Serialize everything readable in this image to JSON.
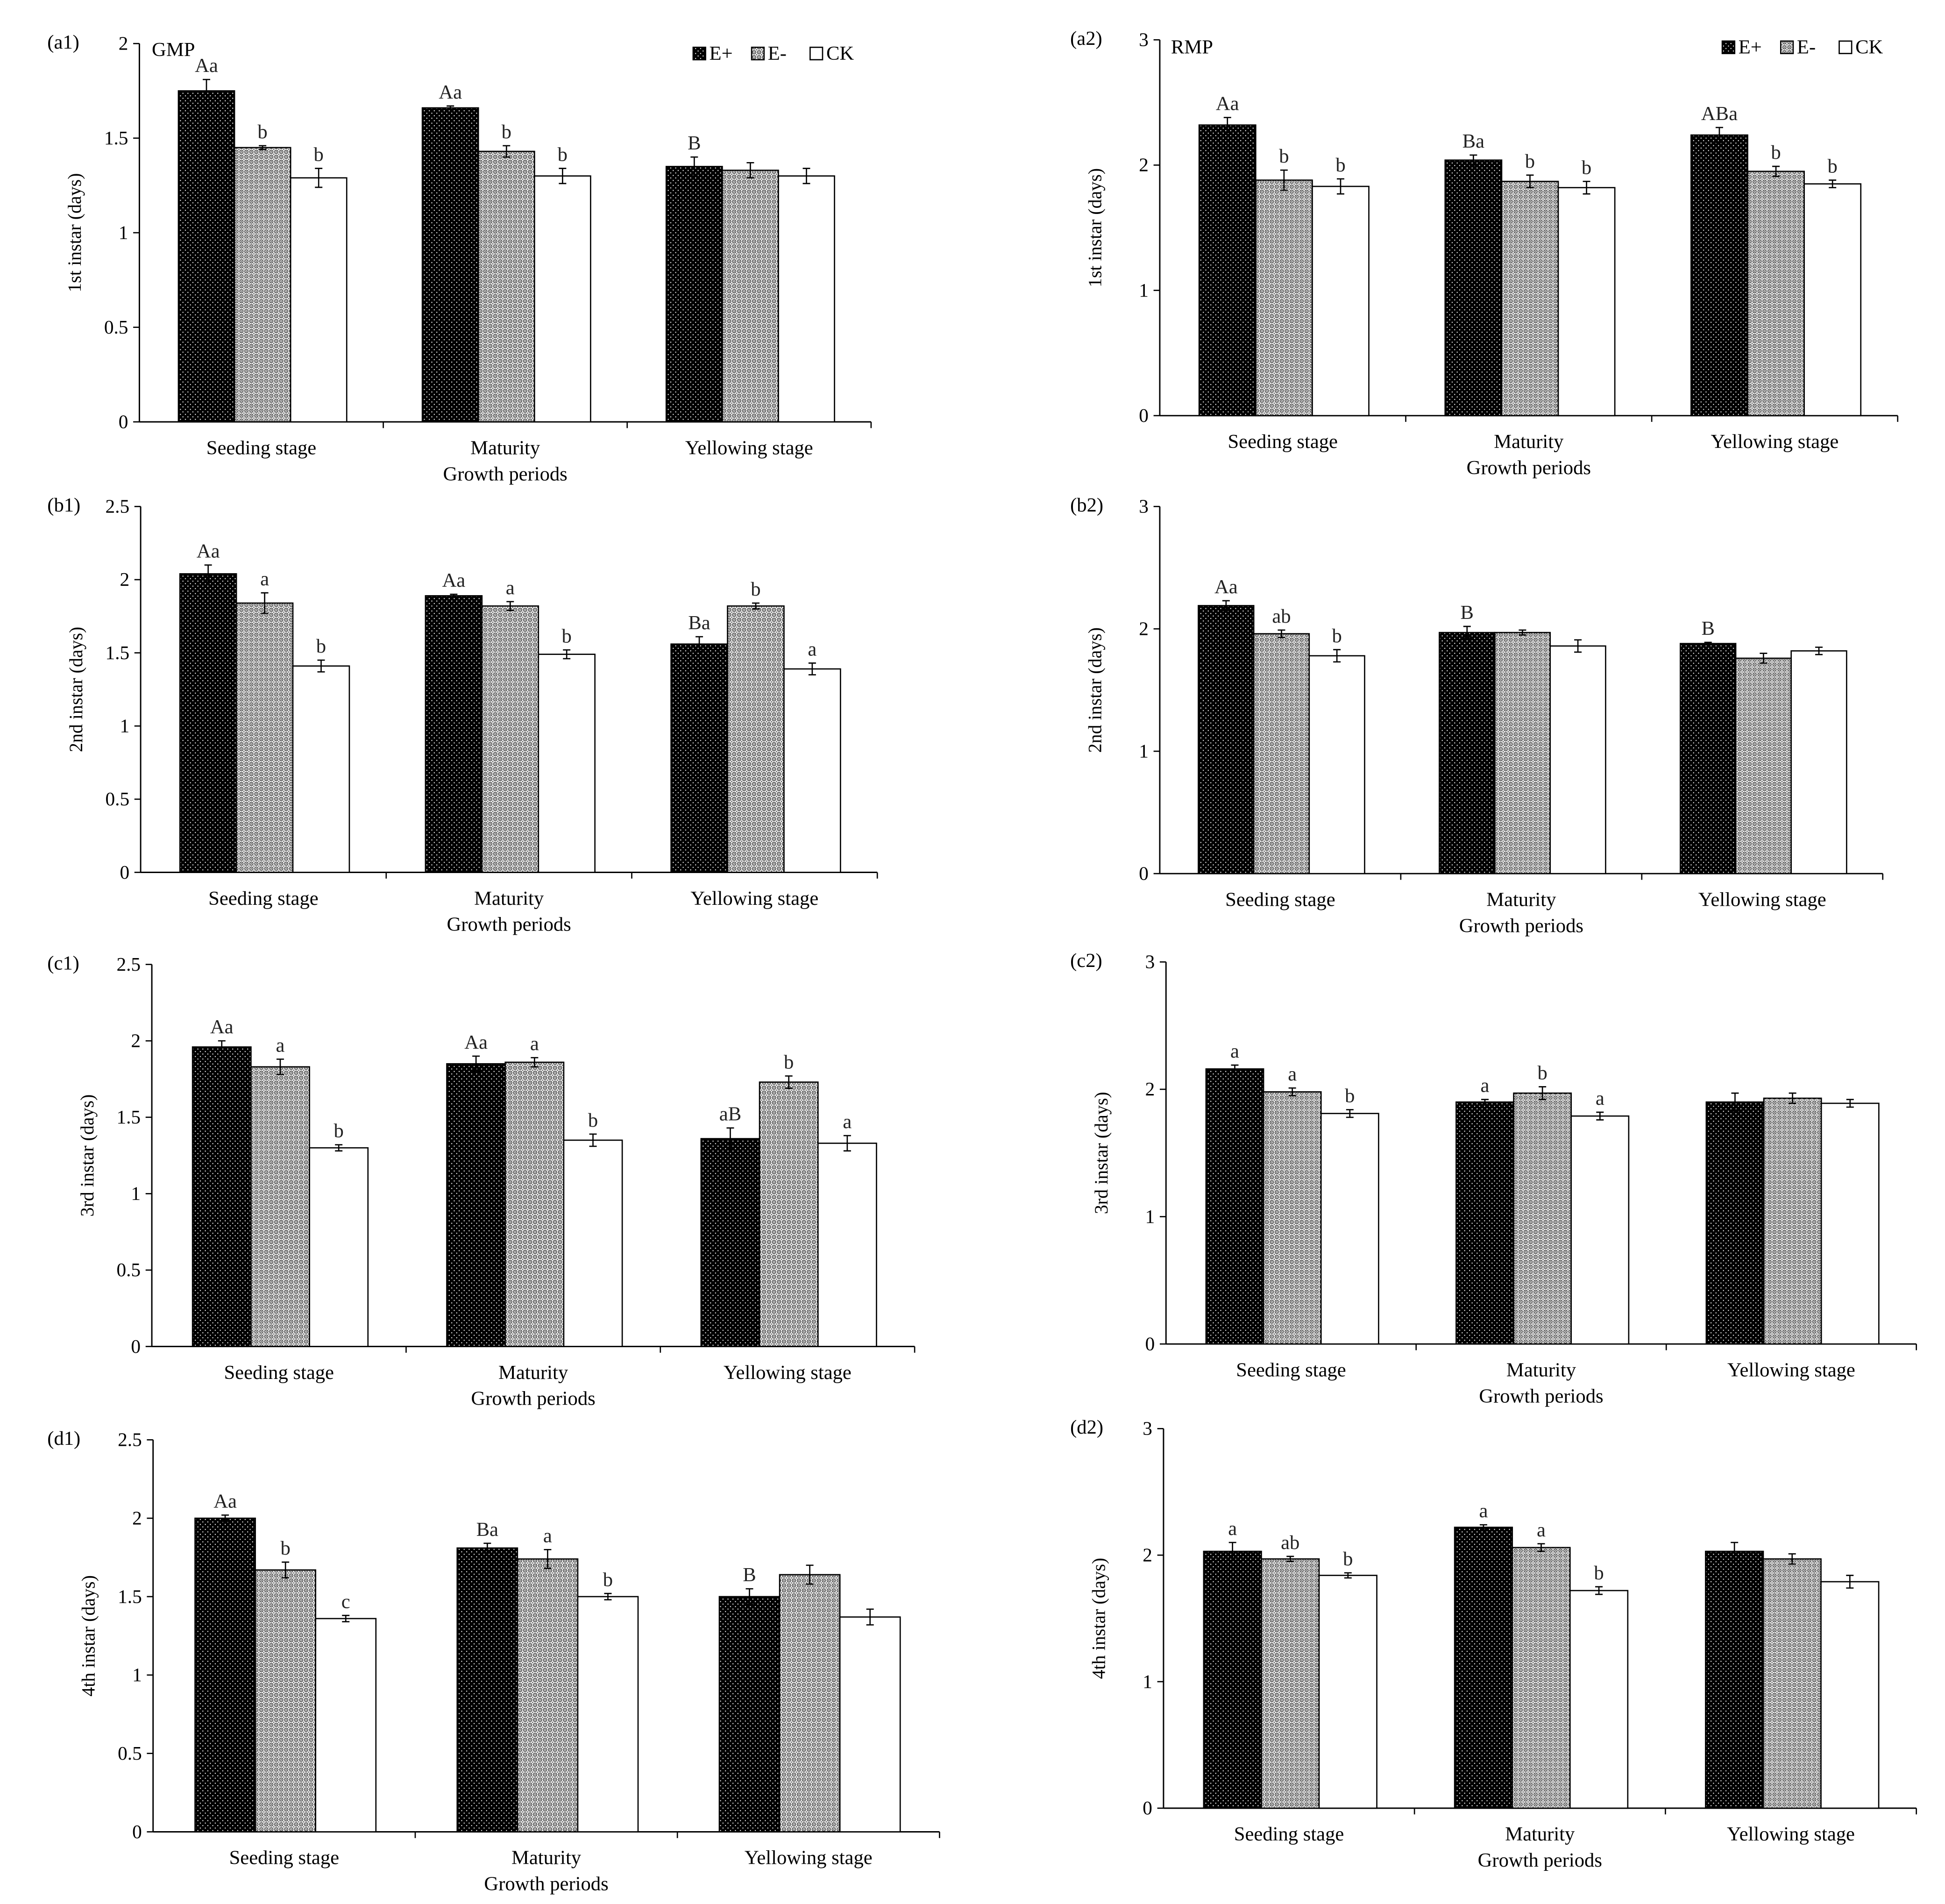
{
  "colors": {
    "background": "#ffffff",
    "axis": "#000000",
    "e_plus_fill": "#000000",
    "e_plus_dot": "#ffffff",
    "e_minus_fill": "#ececec",
    "e_minus_mark": "#3a3a3a",
    "ck_fill": "#ffffff",
    "letter": "#222222"
  },
  "chart_data": [
    {
      "panel": "(a1)",
      "title": "GMP",
      "type": "bar",
      "legend": [
        "E+",
        "E-",
        "CK"
      ],
      "categories": [
        "Seeding stage",
        "Maturity",
        "Yellowing stage"
      ],
      "xlabel": "Growth periods",
      "ylabel": "1st instar (days)",
      "ylim": [
        0,
        2
      ],
      "yticks": [
        0,
        0.5,
        1,
        1.5,
        2
      ],
      "series": [
        {
          "values": [
            1.75,
            1.66,
            1.35
          ],
          "errors": [
            0.06,
            0.01,
            0.05
          ],
          "letters": [
            "Aa",
            "Aa",
            "B"
          ]
        },
        {
          "values": [
            1.45,
            1.43,
            1.33
          ],
          "errors": [
            0.01,
            0.03,
            0.04
          ],
          "letters": [
            "b",
            "b",
            null
          ]
        },
        {
          "values": [
            1.29,
            1.3,
            1.3
          ],
          "errors": [
            0.05,
            0.04,
            0.04
          ],
          "letters": [
            "b",
            "b",
            null
          ]
        }
      ]
    },
    {
      "panel": "(a2)",
      "title": "RMP",
      "type": "bar",
      "legend": [
        "E+",
        "E-",
        "CK"
      ],
      "categories": [
        "Seeding stage",
        "Maturity",
        "Yellowing stage"
      ],
      "xlabel": "Growth periods",
      "ylabel": "1st instar (days)",
      "ylim": [
        0,
        3
      ],
      "yticks": [
        0,
        1,
        2,
        3
      ],
      "series": [
        {
          "values": [
            2.32,
            2.04,
            2.24
          ],
          "errors": [
            0.06,
            0.04,
            0.06
          ],
          "letters": [
            "Aa",
            "Ba",
            "ABa"
          ]
        },
        {
          "values": [
            1.88,
            1.87,
            1.95
          ],
          "errors": [
            0.08,
            0.05,
            0.04
          ],
          "letters": [
            "b",
            "b",
            "b"
          ]
        },
        {
          "values": [
            1.83,
            1.82,
            1.85
          ],
          "errors": [
            0.06,
            0.05,
            0.03
          ],
          "letters": [
            "b",
            "b",
            "b"
          ]
        }
      ]
    },
    {
      "panel": "(b1)",
      "type": "bar",
      "categories": [
        "Seeding stage",
        "Maturity",
        "Yellowing stage"
      ],
      "xlabel": "Growth periods",
      "ylabel": "2nd instar (days)",
      "ylim": [
        0,
        2.5
      ],
      "yticks": [
        0,
        0.5,
        1,
        1.5,
        2,
        2.5
      ],
      "series": [
        {
          "values": [
            2.04,
            1.89,
            1.56
          ],
          "errors": [
            0.06,
            0.01,
            0.05
          ],
          "letters": [
            "Aa",
            "Aa",
            "Ba"
          ]
        },
        {
          "values": [
            1.84,
            1.82,
            1.82
          ],
          "errors": [
            0.07,
            0.03,
            0.02
          ],
          "letters": [
            "a",
            "a",
            "b"
          ]
        },
        {
          "values": [
            1.41,
            1.49,
            1.39
          ],
          "errors": [
            0.04,
            0.03,
            0.04
          ],
          "letters": [
            "b",
            "b",
            "a"
          ]
        }
      ]
    },
    {
      "panel": "(b2)",
      "type": "bar",
      "categories": [
        "Seeding stage",
        "Maturity",
        "Yellowing stage"
      ],
      "xlabel": "Growth periods",
      "ylabel": "2nd instar (days)",
      "ylim": [
        0,
        3
      ],
      "yticks": [
        0,
        1,
        2,
        3
      ],
      "series": [
        {
          "values": [
            2.19,
            1.97,
            1.88
          ],
          "errors": [
            0.04,
            0.05,
            0.01
          ],
          "letters": [
            "Aa",
            "B",
            "B"
          ]
        },
        {
          "values": [
            1.96,
            1.97,
            1.76
          ],
          "errors": [
            0.03,
            0.02,
            0.04
          ],
          "letters": [
            "ab",
            null,
            null
          ]
        },
        {
          "values": [
            1.78,
            1.86,
            1.82
          ],
          "errors": [
            0.05,
            0.05,
            0.03
          ],
          "letters": [
            "b",
            null,
            null
          ]
        }
      ]
    },
    {
      "panel": "(c1)",
      "type": "bar",
      "categories": [
        "Seeding stage",
        "Maturity",
        "Yellowing stage"
      ],
      "xlabel": "Growth periods",
      "ylabel": "3rd instar (days)",
      "ylim": [
        0,
        2.5
      ],
      "yticks": [
        0,
        0.5,
        1,
        1.5,
        2,
        2.5
      ],
      "series": [
        {
          "values": [
            1.96,
            1.85,
            1.36
          ],
          "errors": [
            0.04,
            0.05,
            0.07
          ],
          "letters": [
            "Aa",
            "Aa",
            "aB"
          ]
        },
        {
          "values": [
            1.83,
            1.86,
            1.73
          ],
          "errors": [
            0.05,
            0.03,
            0.04
          ],
          "letters": [
            "a",
            "a",
            "b"
          ]
        },
        {
          "values": [
            1.3,
            1.35,
            1.33
          ],
          "errors": [
            0.02,
            0.04,
            0.05
          ],
          "letters": [
            "b",
            "b",
            "a"
          ]
        }
      ]
    },
    {
      "panel": "(c2)",
      "type": "bar",
      "categories": [
        "Seeding stage",
        "Maturity",
        "Yellowing stage"
      ],
      "xlabel": "Growth periods",
      "ylabel": "3rd instar (days)",
      "ylim": [
        0,
        3
      ],
      "yticks": [
        0,
        1,
        2,
        3
      ],
      "series": [
        {
          "values": [
            2.16,
            1.9,
            1.9
          ],
          "errors": [
            0.03,
            0.02,
            0.07
          ],
          "letters": [
            "a",
            "a",
            null
          ]
        },
        {
          "values": [
            1.98,
            1.97,
            1.93
          ],
          "errors": [
            0.03,
            0.05,
            0.04
          ],
          "letters": [
            "a",
            "b",
            null
          ]
        },
        {
          "values": [
            1.81,
            1.79,
            1.89
          ],
          "errors": [
            0.03,
            0.03,
            0.03
          ],
          "letters": [
            "b",
            "a",
            null
          ]
        }
      ]
    },
    {
      "panel": "(d1)",
      "type": "bar",
      "categories": [
        "Seeding stage",
        "Maturity",
        "Yellowing stage"
      ],
      "xlabel": "Growth periods",
      "ylabel": "4th instar (days)",
      "ylim": [
        0,
        2.5
      ],
      "yticks": [
        0,
        0.5,
        1,
        1.5,
        2,
        2.5
      ],
      "series": [
        {
          "values": [
            2.0,
            1.81,
            1.5
          ],
          "errors": [
            0.02,
            0.03,
            0.05
          ],
          "letters": [
            "Aa",
            "Ba",
            "B"
          ]
        },
        {
          "values": [
            1.67,
            1.74,
            1.64
          ],
          "errors": [
            0.05,
            0.06,
            0.06
          ],
          "letters": [
            "b",
            "a",
            null
          ]
        },
        {
          "values": [
            1.36,
            1.5,
            1.37
          ],
          "errors": [
            0.02,
            0.02,
            0.05
          ],
          "letters": [
            "c",
            "b",
            null
          ]
        }
      ]
    },
    {
      "panel": "(d2)",
      "type": "bar",
      "categories": [
        "Seeding stage",
        "Maturity",
        "Yellowing stage"
      ],
      "xlabel": "Growth periods",
      "ylabel": "4th instar (days)",
      "ylim": [
        0,
        3
      ],
      "yticks": [
        0,
        1,
        2,
        3
      ],
      "series": [
        {
          "values": [
            2.03,
            2.22,
            2.03
          ],
          "errors": [
            0.07,
            0.02,
            0.07
          ],
          "letters": [
            "a",
            "a",
            null
          ]
        },
        {
          "values": [
            1.97,
            2.06,
            1.97
          ],
          "errors": [
            0.02,
            0.03,
            0.04
          ],
          "letters": [
            "ab",
            "a",
            null
          ]
        },
        {
          "values": [
            1.84,
            1.72,
            1.79
          ],
          "errors": [
            0.02,
            0.03,
            0.05
          ],
          "letters": [
            "b",
            "b",
            null
          ]
        }
      ]
    }
  ]
}
